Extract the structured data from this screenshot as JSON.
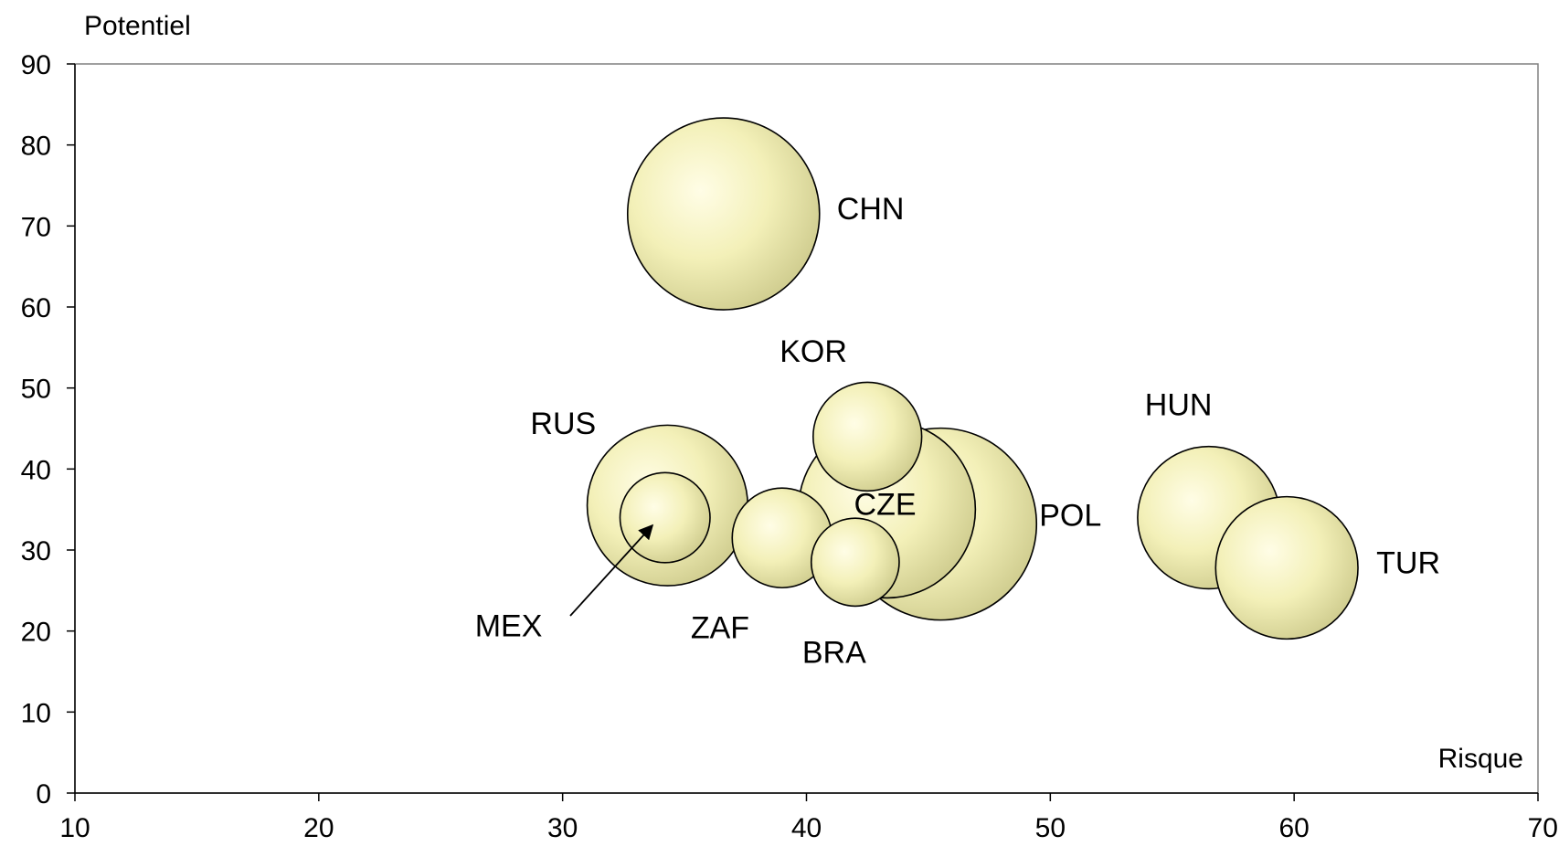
{
  "chart_data": {
    "type": "bubble",
    "title": "",
    "xlabel": "Risque",
    "ylabel": "Potentiel",
    "xlim": [
      10,
      70
    ],
    "ylim": [
      0,
      90
    ],
    "xticks": [
      10,
      20,
      30,
      40,
      50,
      60,
      70
    ],
    "yticks": [
      0,
      10,
      20,
      30,
      40,
      50,
      60,
      70,
      80,
      90
    ],
    "grid": false,
    "bubble_color": "#f3f0b8",
    "bubble_highlight": "#fffde6",
    "bubble_shade": "#d2cf92",
    "points": [
      {
        "label": "CHN",
        "x": 36.6,
        "y": 71.5,
        "size": 100
      },
      {
        "label": "POL",
        "x": 45.5,
        "y": 33.2,
        "size": 100
      },
      {
        "label": "CZE",
        "x": 43.3,
        "y": 35.0,
        "size": 85
      },
      {
        "label": "RUS",
        "x": 34.3,
        "y": 35.5,
        "size": 70
      },
      {
        "label": "HUN",
        "x": 56.5,
        "y": 34.0,
        "size": 55
      },
      {
        "label": "TUR",
        "x": 59.7,
        "y": 27.8,
        "size": 55
      },
      {
        "label": "KOR",
        "x": 42.5,
        "y": 44.0,
        "size": 32
      },
      {
        "label": "ZAF",
        "x": 39.0,
        "y": 31.5,
        "size": 27
      },
      {
        "label": "MEX",
        "x": 34.2,
        "y": 34.0,
        "size": 22
      },
      {
        "label": "BRA",
        "x": 42.0,
        "y": 28.5,
        "size": 21
      }
    ]
  }
}
